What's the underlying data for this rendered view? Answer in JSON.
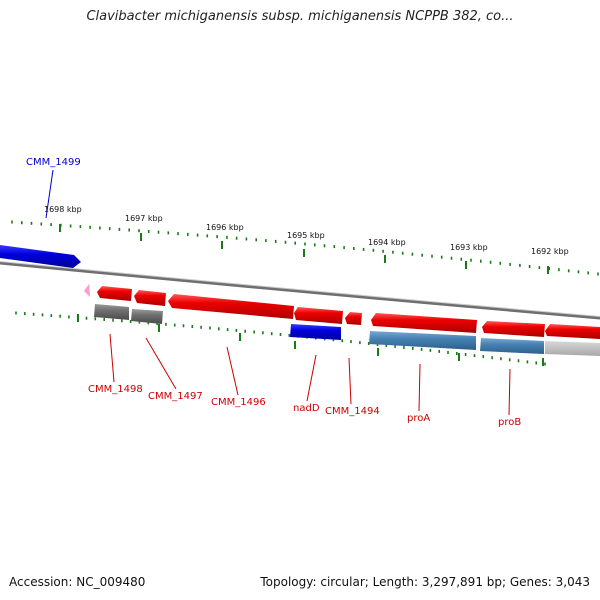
{
  "title": "Clavibacter michiganensis subsp. michiganensis NCPPB 382, co...",
  "accession_label": "Accession: NC_009480",
  "summary_label": "Topology: circular; Length: 3,297,891 bp; Genes: 3,043",
  "colors": {
    "forward_gene": "#ee0000",
    "reverse_gene": "#0000dd",
    "steel_gene": "#4682b4",
    "grey_gene": "#707070",
    "pink_gene": "#ff99cc",
    "tick": "#1a7a1a",
    "backbone": "#888888",
    "label_red": "#cc0000",
    "label_blue": "#0000cc"
  },
  "scale_labels": [
    "1698 kbp",
    "1697 kbp",
    "1696 kbp",
    "1695 kbp",
    "1694 kbp",
    "1693 kbp",
    "1692 kbp"
  ],
  "gene_labels": {
    "cmm_1499": "CMM_1499",
    "cmm_1498": "CMM_1498",
    "cmm_1497": "CMM_1497",
    "cmm_1496": "CMM_1496",
    "nadD": "nadD",
    "cmm_1494": "CMM_1494",
    "proA": "proA",
    "proB": "proB"
  }
}
